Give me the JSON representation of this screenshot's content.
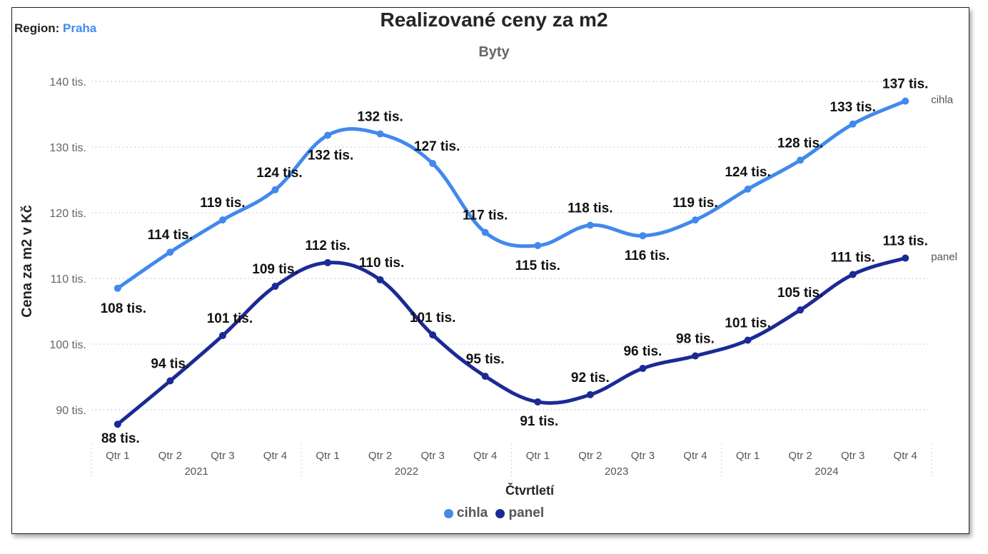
{
  "header": {
    "region_label": "Region:",
    "region_value": "Praha",
    "title": "Realizované ceny za m2",
    "subtitle": "Byty"
  },
  "colors": {
    "cihla": "#4189ec",
    "panel": "#1b2a95",
    "region_value": "#3d8bf0"
  },
  "chart_data": {
    "type": "line",
    "title": "Realizované ceny za m2",
    "subtitle": "Byty",
    "xlabel": "Čtvrtletí",
    "ylabel": "Cena za m2 v Kč",
    "ylim": [
      86,
      143
    ],
    "yticks": [
      90,
      100,
      110,
      120,
      130,
      140
    ],
    "ytick_labels": [
      "90 tis.",
      "100 tis.",
      "110 tis.",
      "120 tis.",
      "130 tis.",
      "140 tis."
    ],
    "quarters": [
      "Qtr 1",
      "Qtr 2",
      "Qtr 3",
      "Qtr 4",
      "Qtr 1",
      "Qtr 2",
      "Qtr 3",
      "Qtr 4",
      "Qtr 1",
      "Qtr 2",
      "Qtr 3",
      "Qtr 4",
      "Qtr 1",
      "Qtr 2",
      "Qtr 3",
      "Qtr 4"
    ],
    "years": [
      "2021",
      "2022",
      "2023",
      "2024"
    ],
    "grid": true,
    "legend_position": "bottom",
    "series": [
      {
        "name": "cihla",
        "end_label": "cihla",
        "values": [
          108.5,
          114.0,
          118.9,
          123.5,
          131.8,
          132.0,
          127.5,
          117.0,
          115.0,
          118.1,
          116.5,
          118.9,
          123.6,
          128.0,
          133.5,
          137.0
        ],
        "labels": [
          "108 tis.",
          "114 tis.",
          "119 tis.",
          "124 tis.",
          "132 tis.",
          "132 tis.",
          "127 tis.",
          "117 tis.",
          "115 tis.",
          "118 tis.",
          "116 tis.",
          "119 tis.",
          "124 tis.",
          "128 tis.",
          "133 tis.",
          "137 tis."
        ]
      },
      {
        "name": "panel",
        "end_label": "panel",
        "values": [
          87.8,
          94.4,
          101.3,
          108.8,
          112.4,
          109.8,
          101.4,
          95.1,
          91.2,
          92.3,
          96.3,
          98.2,
          100.6,
          105.2,
          110.6,
          113.1
        ],
        "labels": [
          "88 tis.",
          "94 tis.",
          "101 tis.",
          "109 tis.",
          "112 tis.",
          "110 tis.",
          "101 tis.",
          "95 tis.",
          "91 tis.",
          "92 tis.",
          "96 tis.",
          "98 tis.",
          "101 tis.",
          "105 tis.",
          "111 tis.",
          "113 tis."
        ]
      }
    ]
  }
}
